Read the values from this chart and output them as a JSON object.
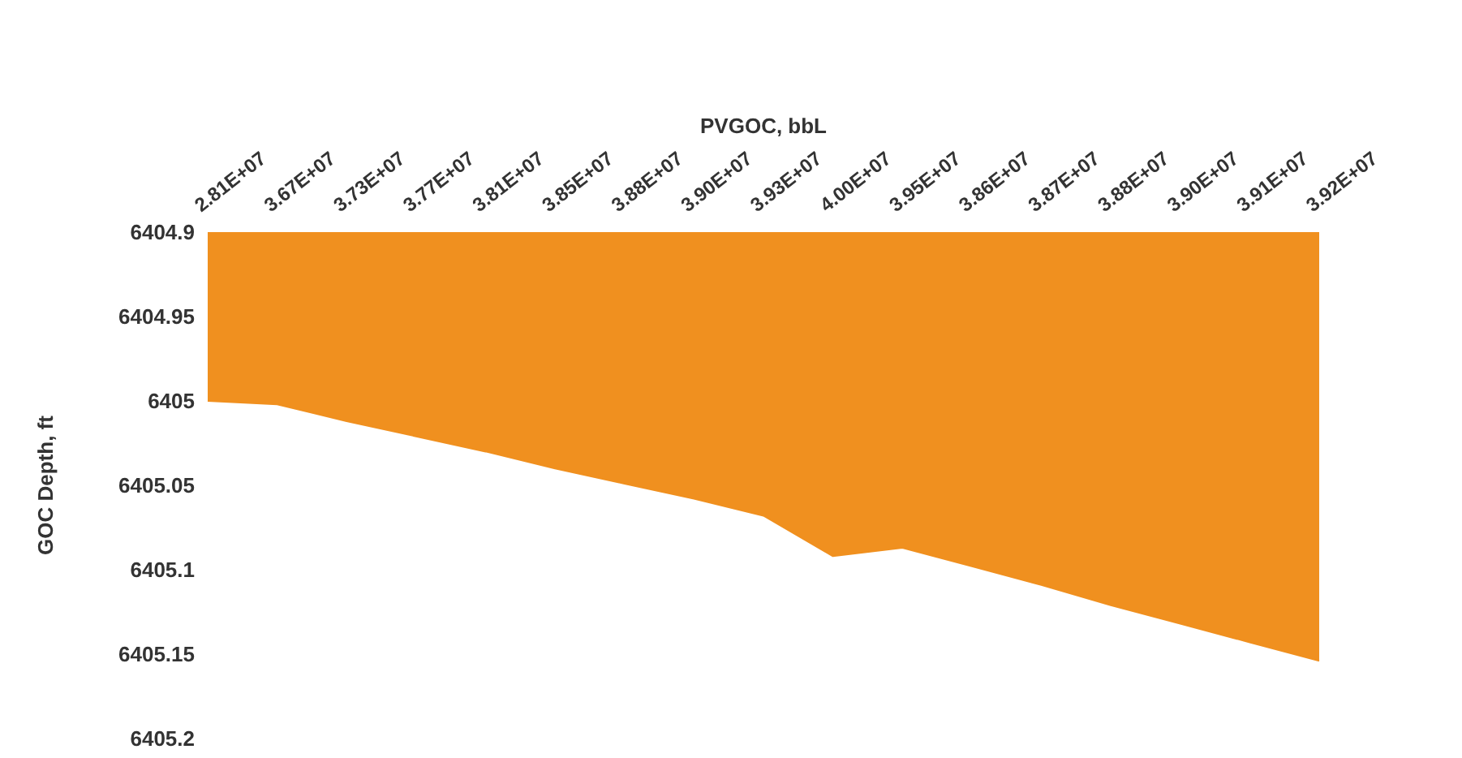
{
  "chart_data": {
    "type": "area",
    "xlabel": "PVGOC, bbL",
    "ylabel": "GOC Depth, ft",
    "categories": [
      "2.81E+07",
      "3.67E+07",
      "3.73E+07",
      "3.77E+07",
      "3.81E+07",
      "3.85E+07",
      "3.88E+07",
      "3.90E+07",
      "3.93E+07",
      "4.00E+07",
      "3.95E+07",
      "3.86E+07",
      "3.87E+07",
      "3.88E+07",
      "3.90E+07",
      "3.91E+07",
      "3.92E+07"
    ],
    "series": [
      {
        "color": "#f0901f",
        "values": [
          6405.0,
          6405.002,
          6405.012,
          6405.021,
          6405.03,
          6405.04,
          6405.049,
          6405.058,
          6405.068,
          6405.092,
          6405.087,
          6405.098,
          6405.109,
          6405.121,
          6405.132,
          6405.143,
          6405.154
        ]
      }
    ],
    "ylim": [
      6405.2,
      6404.9
    ],
    "yticks": [
      6404.9,
      6404.95,
      6405,
      6405.05,
      6405.1,
      6405.15,
      6405.2
    ],
    "grid": false,
    "legend": false
  }
}
